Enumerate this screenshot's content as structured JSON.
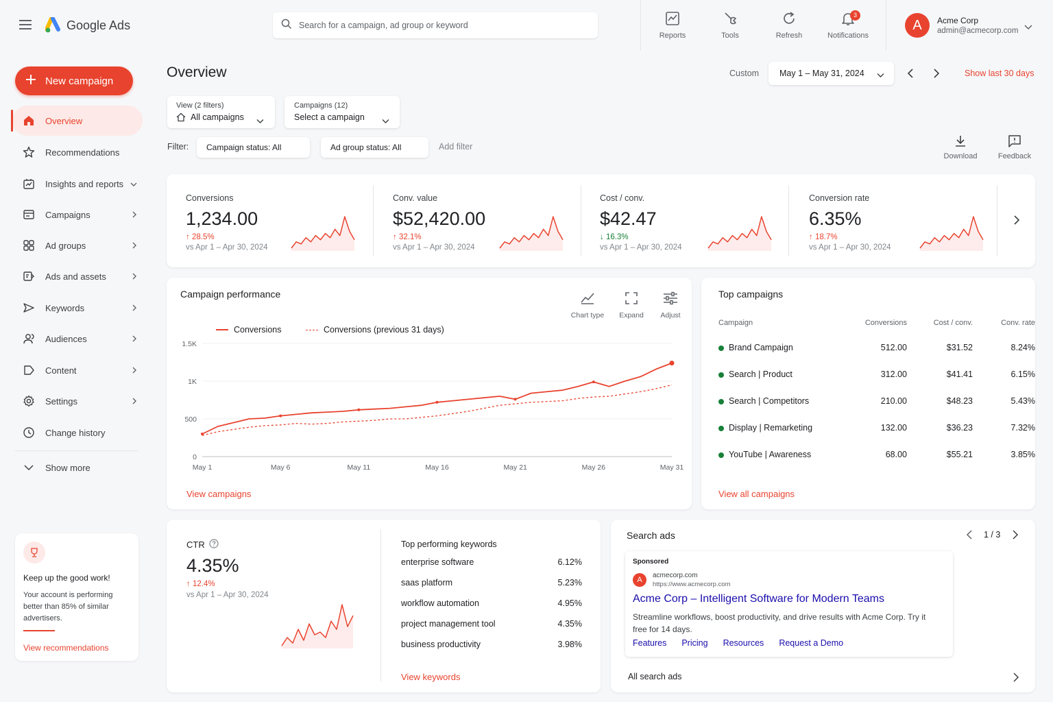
{
  "app": {
    "name": "Google Ads"
  },
  "search": {
    "placeholder": "Search for a campaign, ad group or keyword"
  },
  "toolbar": {
    "reports": "Reports",
    "tools": "Tools",
    "refresh": "Refresh",
    "notifications": "Notifications",
    "notification_count": "3"
  },
  "account": {
    "avatar_letter": "A",
    "name": "Acme Corp",
    "email": "admin@acmecorp.com"
  },
  "sidebar": {
    "new_campaign": "New campaign",
    "items": [
      {
        "label": "Overview",
        "icon": "home-icon"
      },
      {
        "label": "Recommendations",
        "icon": "star-badge-icon"
      },
      {
        "label": "Insights and reports",
        "icon": "insights-icon"
      },
      {
        "label": "Campaigns",
        "icon": "campaigns-icon"
      },
      {
        "label": "Ad groups",
        "icon": "ad-groups-icon"
      },
      {
        "label": "Ads and assets",
        "icon": "ads-icon"
      },
      {
        "label": "Keywords",
        "icon": "keywords-icon"
      },
      {
        "label": "Audiences",
        "icon": "audiences-icon"
      },
      {
        "label": "Content",
        "icon": "content-icon"
      },
      {
        "label": "Settings",
        "icon": "gear-icon"
      },
      {
        "label": "Change history",
        "icon": "clock-icon"
      }
    ],
    "show_more": "Show more",
    "promo": {
      "title": "Keep up the good work!",
      "body": "Your account is performing better than 85% of similar advertisers.",
      "link": "View recommendations"
    }
  },
  "header": {
    "title": "Overview",
    "range_label": "Custom",
    "date_range": "May 1 – May 31, 2024",
    "show_last": "Show last 30 days"
  },
  "filters": {
    "view_label": "View (2 filters)",
    "view_value": "All campaigns",
    "campaigns_label": "Campaigns (12)",
    "campaigns_value": "Select a campaign",
    "filter_label": "Filter:",
    "chip1": "Campaign status: All",
    "chip2": "Ad group status: All",
    "add_filter": "Add filter",
    "download": "Download",
    "feedback": "Feedback"
  },
  "kpis": [
    {
      "label": "Conversions",
      "value": "1,234.00",
      "change": "28.5%",
      "direction": "up",
      "compare": "vs Apr 1 – Apr 30, 2024"
    },
    {
      "label": "Conv. value",
      "value": "$52,420.00",
      "change": "32.1%",
      "direction": "up",
      "compare": "vs Apr 1 – Apr 30, 2024"
    },
    {
      "label": "Cost / conv.",
      "value": "$42.47",
      "change": "16.3%",
      "direction": "down",
      "compare": "vs Apr 1 – Apr 30, 2024"
    },
    {
      "label": "Conversion rate",
      "value": "6.35%",
      "change": "18.7%",
      "direction": "up",
      "compare": "vs Apr 1 – Apr 30, 2024"
    }
  ],
  "performance": {
    "title": "Campaign performance",
    "chart_type": "Chart type",
    "expand": "Expand",
    "adjust": "Adjust",
    "link": "View campaigns"
  },
  "chart_data": {
    "type": "line",
    "title": "Campaign performance",
    "xlabel": "",
    "ylabel": "",
    "ylim": [
      0,
      1500
    ],
    "yticks": [
      "0",
      "500",
      "1K",
      "1.5K"
    ],
    "x_tick_labels": [
      "May 1",
      "May 6",
      "May 11",
      "May 16",
      "May 21",
      "May 26",
      "May 31"
    ],
    "x": [
      "May 1",
      "May 2",
      "May 3",
      "May 4",
      "May 5",
      "May 6",
      "May 7",
      "May 8",
      "May 9",
      "May 10",
      "May 11",
      "May 12",
      "May 13",
      "May 14",
      "May 15",
      "May 16",
      "May 17",
      "May 18",
      "May 19",
      "May 20",
      "May 21",
      "May 22",
      "May 23",
      "May 24",
      "May 25",
      "May 26",
      "May 27",
      "May 28",
      "May 29",
      "May 30",
      "May 31"
    ],
    "series": [
      {
        "name": "Conversions",
        "style": "solid",
        "color": "#e8432e",
        "values": [
          300,
          400,
          450,
          500,
          510,
          540,
          560,
          580,
          590,
          600,
          620,
          630,
          640,
          660,
          680,
          720,
          740,
          760,
          780,
          800,
          760,
          840,
          860,
          880,
          930,
          990,
          930,
          1000,
          1060,
          1160,
          1240
        ]
      },
      {
        "name": "Conversions (previous 31 days)",
        "style": "dashed",
        "color": "#e8432e",
        "values": [
          280,
          330,
          360,
          390,
          410,
          420,
          440,
          430,
          440,
          460,
          470,
          480,
          500,
          500,
          520,
          540,
          570,
          600,
          640,
          680,
          700,
          720,
          730,
          740,
          770,
          790,
          800,
          830,
          860,
          900,
          950
        ]
      }
    ],
    "grid": true,
    "legend": "top-left"
  },
  "top_campaigns": {
    "title": "Top campaigns",
    "columns": [
      "Campaign",
      "Conversions",
      "Cost / conv.",
      "Conv. rate"
    ],
    "rows": [
      {
        "name": "Brand Campaign",
        "conversions": "512.00",
        "cost": "$31.52",
        "rate": "8.24%"
      },
      {
        "name": "Search | Product",
        "conversions": "312.00",
        "cost": "$41.41",
        "rate": "6.15%"
      },
      {
        "name": "Search | Competitors",
        "conversions": "210.00",
        "cost": "$48.23",
        "rate": "5.43%"
      },
      {
        "name": "Display | Remarketing",
        "conversions": "132.00",
        "cost": "$36.23",
        "rate": "7.32%"
      },
      {
        "name": "YouTube | Awareness",
        "conversions": "68.00",
        "cost": "$55.21",
        "rate": "3.85%"
      }
    ],
    "status_color": "#188038",
    "link": "View all campaigns"
  },
  "ctr": {
    "label": "CTR",
    "value": "4.35%",
    "change": "12.4%",
    "compare": "vs Apr 1 – Apr 30, 2024"
  },
  "keywords": {
    "title": "Top performing keywords",
    "rows": [
      {
        "keyword": "enterprise software",
        "value": "6.12%"
      },
      {
        "keyword": "saas platform",
        "value": "5.23%"
      },
      {
        "keyword": "workflow automation",
        "value": "4.95%"
      },
      {
        "keyword": "project management tool",
        "value": "4.35%"
      },
      {
        "keyword": "business productivity",
        "value": "3.98%"
      }
    ],
    "link": "View keywords"
  },
  "search_ads": {
    "title": "Search ads",
    "pager": "1 / 3",
    "sponsored": "Sponsored",
    "domain": "acmecorp.com",
    "url": "https://www.acmecorp.com",
    "headline": "Acme Corp – Intelligent Software for Modern Teams",
    "description": "Streamline workflows, boost productivity, and drive results with Acme Corp. Try it free for 14 days.",
    "sitelinks": [
      "Features",
      "Pricing",
      "Resources",
      "Request a Demo"
    ],
    "footer": "All search ads"
  },
  "colors": {
    "accent": "#e8432e",
    "link_blue": "#1a0dab",
    "positive": "#188038"
  }
}
